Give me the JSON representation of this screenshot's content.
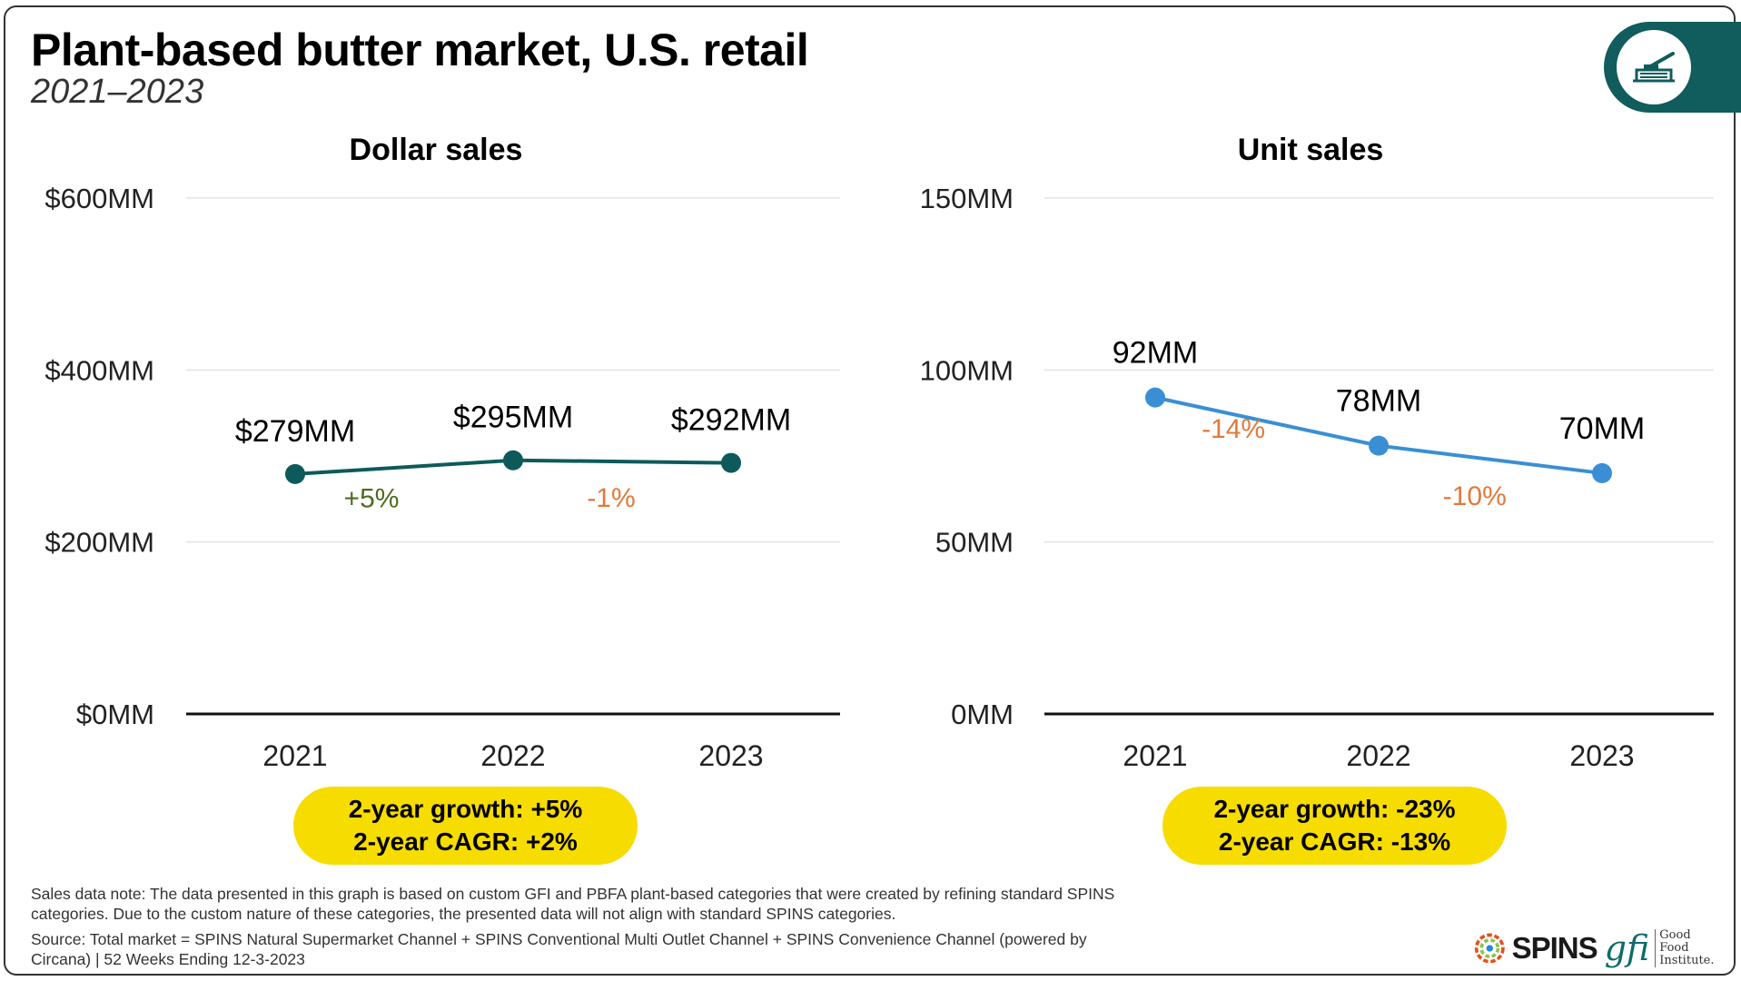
{
  "header": {
    "title": "Plant-based butter market, U.S. retail",
    "subtitle": "2021–2023"
  },
  "colors": {
    "dollar_line": "#0e5a5a",
    "unit_line": "#3a8fd4",
    "positive": "#4f6b1f",
    "negative": "#e07a3c",
    "pill": "#f7dc00",
    "grid": "#e3e3e3",
    "axis": "#111111"
  },
  "chart_data": [
    {
      "type": "line",
      "title": "Dollar sales",
      "categories": [
        "2021",
        "2022",
        "2023"
      ],
      "values": [
        279,
        295,
        292
      ],
      "value_labels": [
        "$279MM",
        "$295MM",
        "$292MM"
      ],
      "change_labels": [
        "+5%",
        "-1%"
      ],
      "change_sign": [
        "positive",
        "negative"
      ],
      "ylim": [
        0,
        600
      ],
      "yticks": [
        0,
        200,
        400,
        600
      ],
      "ytick_labels": [
        "$0MM",
        "$200MM",
        "$400MM",
        "$600MM"
      ],
      "unit": "$MM",
      "summary": [
        "2-year growth: +5%",
        "2-year CAGR: +2%"
      ]
    },
    {
      "type": "line",
      "title": "Unit sales",
      "categories": [
        "2021",
        "2022",
        "2023"
      ],
      "values": [
        92,
        78,
        70
      ],
      "value_labels": [
        "92MM",
        "78MM",
        "70MM"
      ],
      "change_labels": [
        "-14%",
        "-10%"
      ],
      "change_sign": [
        "negative",
        "negative"
      ],
      "ylim": [
        0,
        150
      ],
      "yticks": [
        0,
        50,
        100,
        150
      ],
      "ytick_labels": [
        "0MM",
        "50MM",
        "100MM",
        "150MM"
      ],
      "unit": "MM",
      "summary": [
        "2-year growth: -23%",
        "2-year CAGR: -13%"
      ]
    }
  ],
  "notes": {
    "sales_note": "Sales data note: The data presented in this graph is based on custom GFI and PBFA plant-based categories that were created by refining standard SPINS categories. Due to the custom nature of these categories, the presented data will not align with standard SPINS categories.",
    "source": "Source: Total market = SPINS Natural Supermarket Channel + SPINS Conventional Multi Outlet Channel + SPINS Convenience Channel (powered by Circana) | 52 Weeks Ending 12-3-2023"
  },
  "logos": {
    "spins": "SPINS",
    "gfi": "gfi",
    "gfi_sub_1": "Good Food",
    "gfi_sub_2": "Institute."
  }
}
